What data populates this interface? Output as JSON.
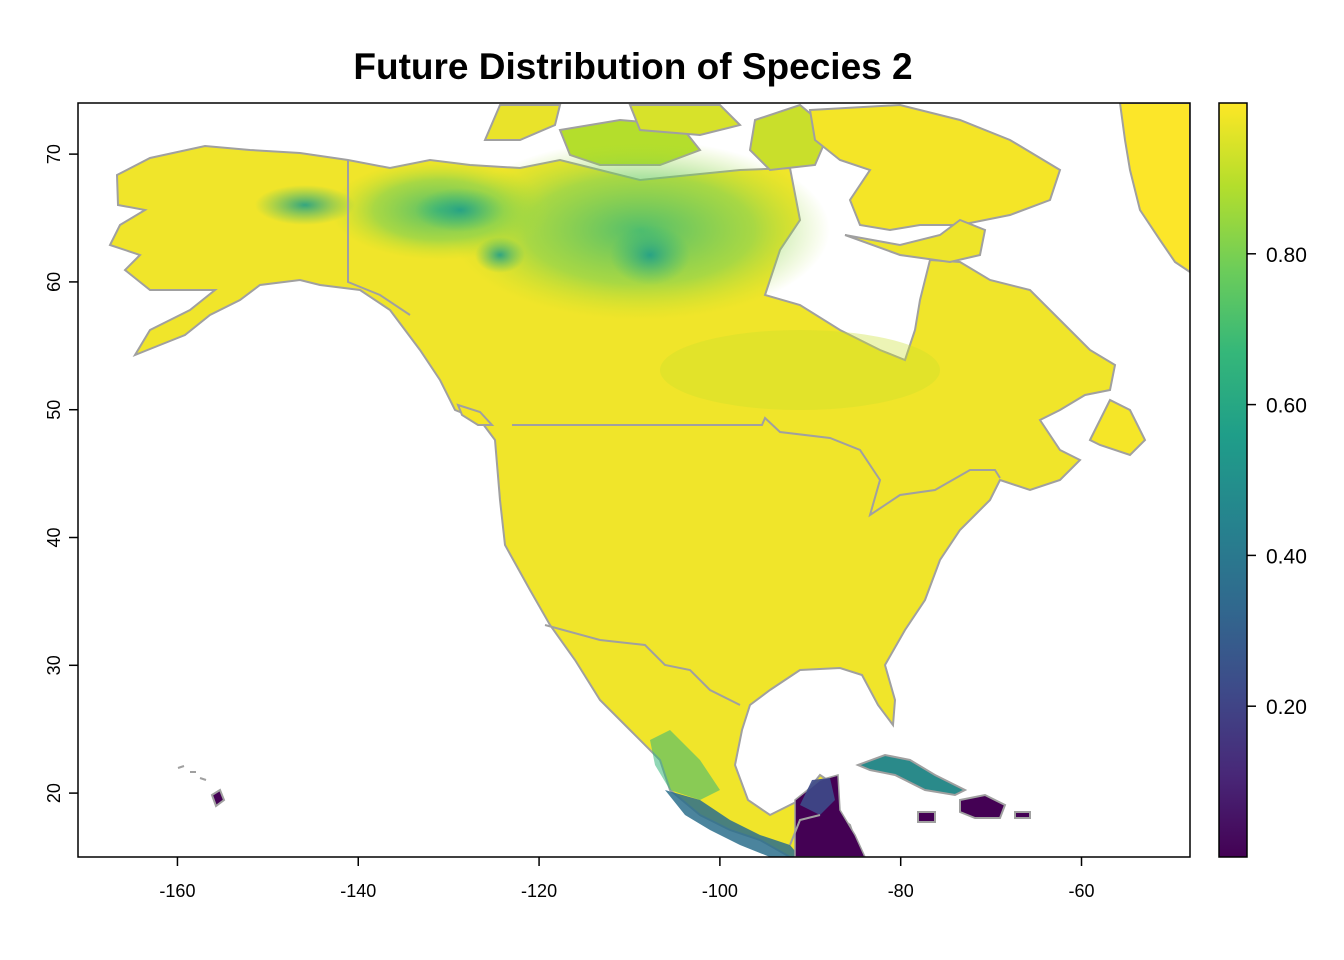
{
  "title": "Future Distribution of Species 2",
  "chart_data": {
    "type": "heatmap",
    "title": "Future Distribution of Species 2",
    "xlabel": "",
    "ylabel": "",
    "xlim": [
      -171,
      -48
    ],
    "ylim": [
      15,
      74
    ],
    "x_ticks": [
      -160,
      -140,
      -120,
      -100,
      -80,
      -60
    ],
    "y_ticks": [
      20,
      30,
      40,
      50,
      60,
      70
    ],
    "colorbar": {
      "range": [
        0.0,
        1.0
      ],
      "ticks": [
        0.2,
        0.4,
        0.6,
        0.8
      ],
      "tick_labels": [
        "0.20",
        "0.40",
        "0.60",
        "0.80"
      ],
      "palette": [
        "#440154",
        "#482878",
        "#3e4a89",
        "#31688e",
        "#26828e",
        "#1f9e89",
        "#35b779",
        "#6dcd59",
        "#b4de2c",
        "#fde725"
      ]
    },
    "regions": [
      {
        "name": "Alaska",
        "value": 0.93
      },
      {
        "name": "Yukon / Northwest Territories interior",
        "value": 0.7
      },
      {
        "name": "Nunavut mainland",
        "value": 0.72
      },
      {
        "name": "Canadian prairies",
        "value": 0.9
      },
      {
        "name": "Quebec / Labrador",
        "value": 0.93
      },
      {
        "name": "Contiguous United States",
        "value": 0.97
      },
      {
        "name": "Northern Mexico",
        "value": 0.95
      },
      {
        "name": "Southern Mexico",
        "value": 0.15
      },
      {
        "name": "Yucatan",
        "value": 0.35
      },
      {
        "name": "Central America",
        "value": 0.05
      },
      {
        "name": "Cuba",
        "value": 0.4
      },
      {
        "name": "Hispaniola",
        "value": 0.05
      },
      {
        "name": "Hawaii",
        "value": 0.05
      },
      {
        "name": "Greenland",
        "value": 0.98
      },
      {
        "name": "Arctic islands",
        "value": 0.9
      }
    ]
  },
  "colors": {
    "border": "#a0a0a0",
    "axis": "#000000"
  }
}
